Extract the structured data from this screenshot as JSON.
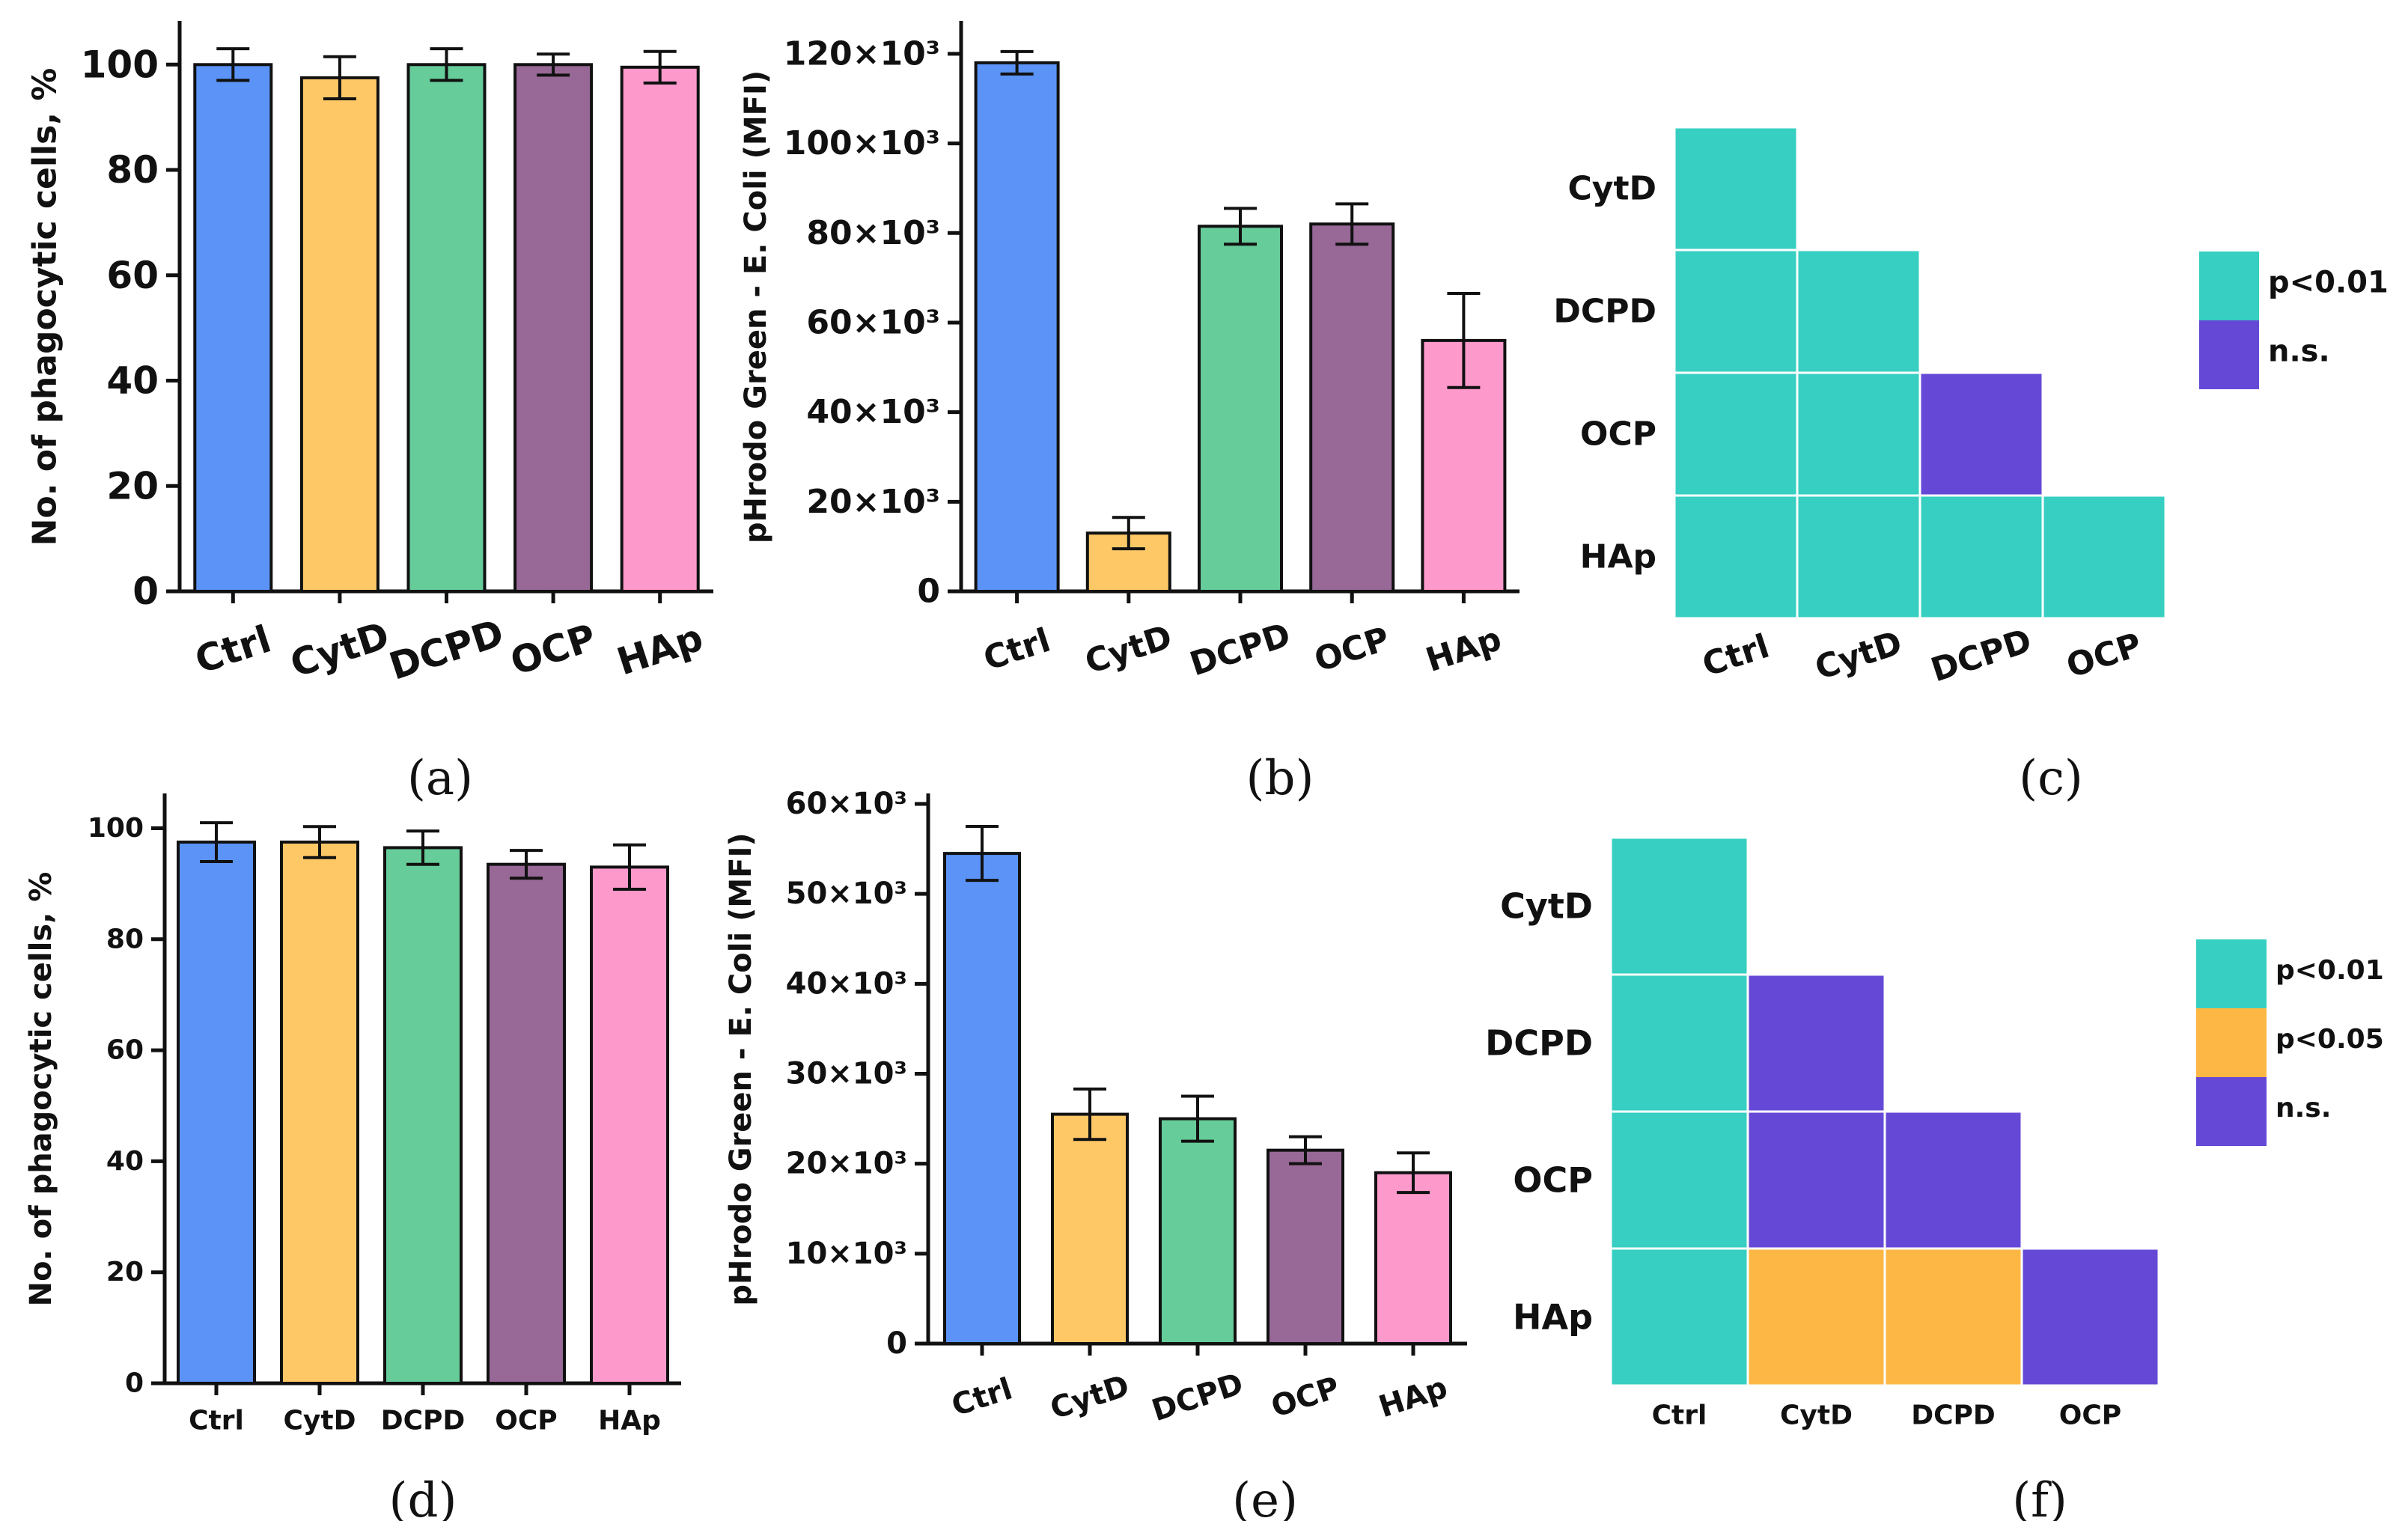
{
  "colors": {
    "Ctrl": "#5b93f7",
    "CytD": "#fec866",
    "DCPD": "#66cc99",
    "OCP": "#986897",
    "HAp": "#fe99cc",
    "p001": "#36cfc1",
    "p005": "#fdb744",
    "ns": "#6549d6"
  },
  "chart_data": [
    {
      "id": "a",
      "type": "bar",
      "panel_label": "(a)",
      "categories": [
        "Ctrl",
        "CytD",
        "DCPD",
        "OCP",
        "HAp"
      ],
      "values": [
        100,
        97.5,
        100,
        100,
        99.5
      ],
      "errors": [
        3,
        4,
        3,
        2,
        3
      ],
      "ylabel": "No. of phagocytic cells, %",
      "ylim": [
        0,
        108
      ],
      "yticks": [
        "0",
        "20",
        "40",
        "60",
        "80",
        "100"
      ],
      "ytick_values": [
        0,
        20,
        40,
        60,
        80,
        100
      ]
    },
    {
      "id": "b",
      "type": "bar",
      "panel_label": "(b)",
      "categories": [
        "Ctrl",
        "CytD",
        "DCPD",
        "OCP",
        "HAp"
      ],
      "values": [
        118000,
        13000,
        81500,
        82000,
        56000
      ],
      "errors": [
        2500,
        3500,
        4000,
        4500,
        10500
      ],
      "ylabel": "pHrodo Green - E. Coli (MFI)",
      "ylim": [
        0,
        127000
      ],
      "yticks": [
        "0",
        "20×10³",
        "40×10³",
        "60×10³",
        "80×10³",
        "100×10³",
        "120×10³"
      ],
      "ytick_values": [
        0,
        20000,
        40000,
        60000,
        80000,
        100000,
        120000
      ]
    },
    {
      "id": "c",
      "type": "heatmap",
      "panel_label": "(c)",
      "rows": [
        "CytD",
        "DCPD",
        "OCP",
        "HAp"
      ],
      "cols": [
        "Ctrl",
        "CytD",
        "DCPD",
        "OCP"
      ],
      "cells": [
        [
          "p<0.01",
          null,
          null,
          null
        ],
        [
          "p<0.01",
          "p<0.01",
          null,
          null
        ],
        [
          "p<0.01",
          "p<0.01",
          "n.s.",
          null
        ],
        [
          "p<0.01",
          "p<0.01",
          "p<0.01",
          "p<0.01"
        ]
      ],
      "legend": [
        "p<0.01",
        "n.s."
      ]
    },
    {
      "id": "d",
      "type": "bar",
      "panel_label": "(d)",
      "categories": [
        "Ctrl",
        "CytD",
        "DCPD",
        "OCP",
        "HAp"
      ],
      "values": [
        97.5,
        97.5,
        96.5,
        93.5,
        93
      ],
      "errors": [
        3.5,
        2.8,
        3,
        2.5,
        4
      ],
      "ylabel": "No. of phagocytic cells, %",
      "ylim": [
        0,
        106
      ],
      "yticks": [
        "0",
        "20",
        "40",
        "60",
        "80",
        "100"
      ],
      "ytick_values": [
        0,
        20,
        40,
        60,
        80,
        100
      ]
    },
    {
      "id": "e",
      "type": "bar",
      "panel_label": "(e)",
      "categories": [
        "Ctrl",
        "CytD",
        "DCPD",
        "OCP",
        "HAp"
      ],
      "values": [
        54500,
        25500,
        25000,
        21500,
        19000
      ],
      "errors": [
        3000,
        2800,
        2500,
        1500,
        2200
      ],
      "ylabel": "pHrodo Green - E. Coli (MFI)",
      "ylim": [
        0,
        61000
      ],
      "yticks": [
        "0",
        "10×10³",
        "20×10³",
        "30×10³",
        "40×10³",
        "50×10³",
        "60×10³"
      ],
      "ytick_values": [
        0,
        10000,
        20000,
        30000,
        40000,
        50000,
        60000
      ]
    },
    {
      "id": "f",
      "type": "heatmap",
      "panel_label": "(f)",
      "rows": [
        "CytD",
        "DCPD",
        "OCP",
        "HAp"
      ],
      "cols": [
        "Ctrl",
        "CytD",
        "DCPD",
        "OCP"
      ],
      "cells": [
        [
          "p<0.01",
          null,
          null,
          null
        ],
        [
          "p<0.01",
          "n.s.",
          null,
          null
        ],
        [
          "p<0.01",
          "n.s.",
          "n.s.",
          null
        ],
        [
          "p<0.01",
          "p<0.05",
          "p<0.05",
          "n.s."
        ]
      ],
      "legend": [
        "p<0.01",
        "p<0.05",
        "n.s."
      ]
    }
  ]
}
